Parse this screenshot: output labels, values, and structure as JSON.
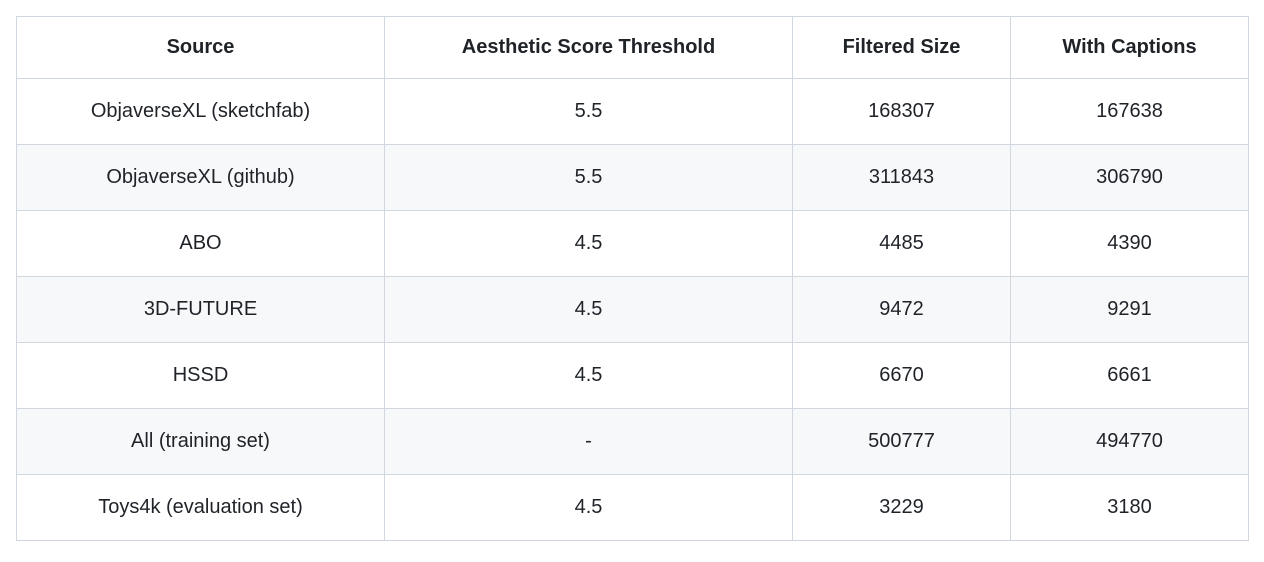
{
  "colors": {
    "background": "#ffffff",
    "stripe": "#f6f8fa",
    "border": "#d0d7de",
    "text": "#1f2328"
  },
  "table": {
    "columns": [
      "Source",
      "Aesthetic Score Threshold",
      "Filtered Size",
      "With Captions"
    ],
    "rows": [
      [
        "ObjaverseXL (sketchfab)",
        "5.5",
        "168307",
        "167638"
      ],
      [
        "ObjaverseXL (github)",
        "5.5",
        "311843",
        "306790"
      ],
      [
        "ABO",
        "4.5",
        "4485",
        "4390"
      ],
      [
        "3D-FUTURE",
        "4.5",
        "9472",
        "9291"
      ],
      [
        "HSSD",
        "4.5",
        "6670",
        "6661"
      ],
      [
        "All (training set)",
        "-",
        "500777",
        "494770"
      ],
      [
        "Toys4k (evaluation set)",
        "4.5",
        "3229",
        "3180"
      ]
    ]
  }
}
